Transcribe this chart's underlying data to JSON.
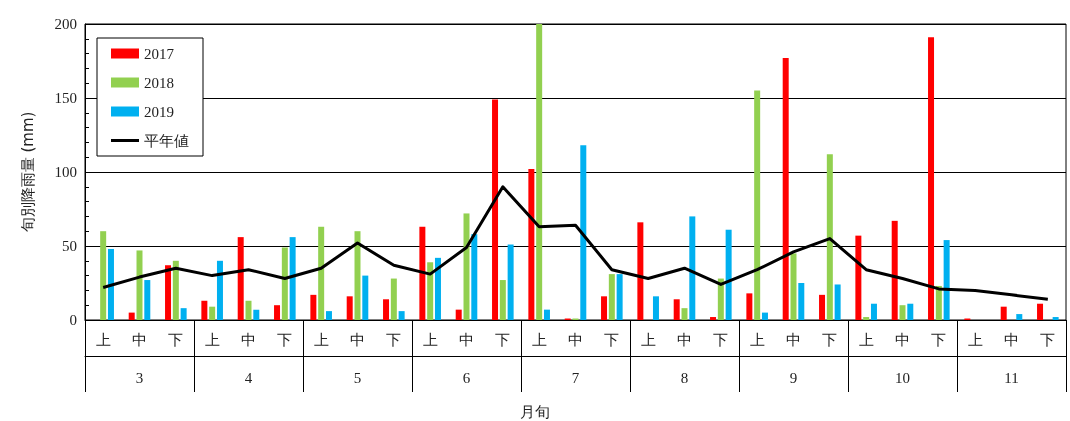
{
  "chart_data": {
    "type": "bar",
    "xlabel": "月旬",
    "ylabel": "旬別降雨量 (mm)",
    "categories": [
      "上",
      "中",
      "下",
      "上",
      "中",
      "下",
      "上",
      "中",
      "下",
      "上",
      "中",
      "下",
      "上",
      "中",
      "下",
      "上",
      "中",
      "下",
      "上",
      "中",
      "下",
      "上",
      "中",
      "下",
      "上",
      "中",
      "下"
    ],
    "annotations": [
      "3",
      "4",
      "5",
      "6",
      "7",
      "8",
      "9",
      "10",
      "11"
    ],
    "series": [
      {
        "name": "2017",
        "color": "#ff0000",
        "values": [
          0,
          5,
          37,
          13,
          56,
          10,
          17,
          16,
          14,
          63,
          7,
          149,
          102,
          1,
          16,
          66,
          14,
          2,
          18,
          177,
          17,
          57,
          67,
          191,
          1,
          9,
          11
        ]
      },
      {
        "name": "2018",
        "color": "#92d050",
        "values": [
          60,
          47,
          40,
          9,
          13,
          49,
          63,
          60,
          28,
          39,
          72,
          27,
          200,
          1,
          31,
          0,
          8,
          28,
          155,
          45,
          112,
          2,
          10,
          23,
          0,
          0,
          0
        ]
      },
      {
        "name": "2019",
        "color": "#00b0f0",
        "values": [
          48,
          27,
          8,
          40,
          7,
          56,
          6,
          30,
          6,
          42,
          58,
          51,
          7,
          118,
          31,
          16,
          70,
          61,
          5,
          25,
          24,
          11,
          11,
          54,
          0,
          4,
          2
        ]
      },
      {
        "name": "平年値",
        "type": "line",
        "color": "#000000",
        "values": [
          22,
          29,
          35,
          30,
          34,
          28,
          35,
          52,
          37,
          31,
          49,
          90,
          63,
          64,
          34,
          28,
          35,
          24,
          34,
          46,
          55,
          34,
          28,
          21,
          20,
          17,
          14
        ]
      }
    ],
    "ylim": [
      0,
      200
    ],
    "yticks": [
      0,
      50,
      100,
      150,
      200
    ],
    "grid": "y",
    "legend": "top left",
    "marker": "none"
  }
}
